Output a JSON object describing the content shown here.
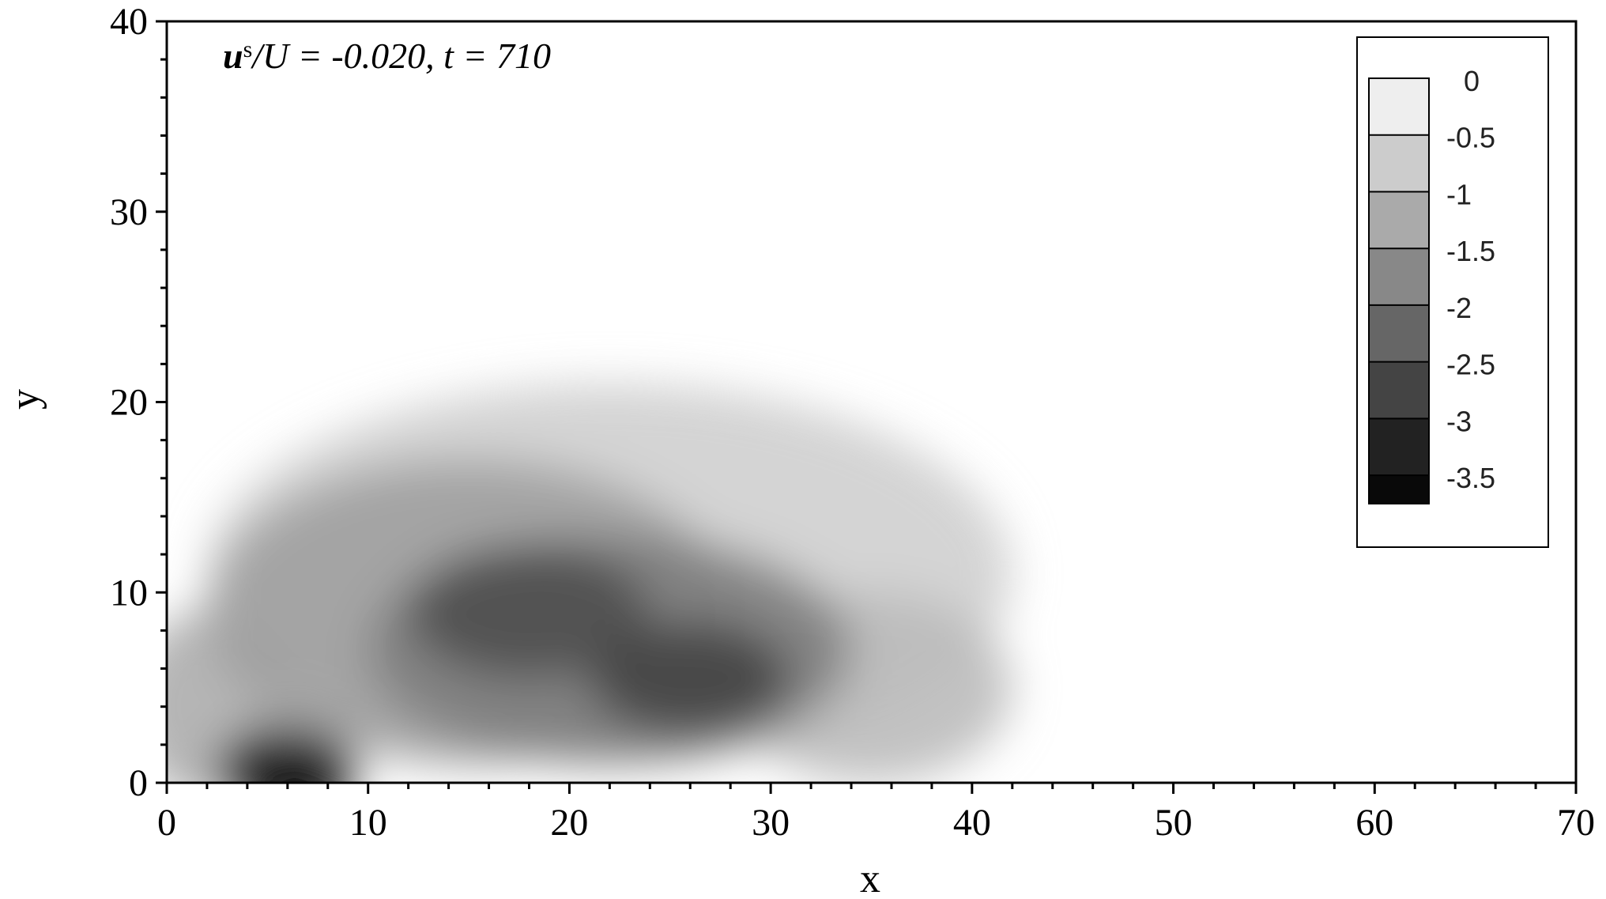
{
  "chart_data": {
    "type": "contour",
    "annotation": {
      "symbol": "u",
      "superscript": "s",
      "rest": "/U  = -0.020,   t = 710"
    },
    "x_label": "x",
    "y_label": "y",
    "xlim": [
      0,
      70
    ],
    "xticks": [
      0,
      10,
      20,
      30,
      40,
      50,
      60,
      70
    ],
    "ylim": [
      0,
      40
    ],
    "yticks": [
      0,
      10,
      20,
      30,
      40
    ],
    "minor_per_major": 5,
    "colormap": [
      "#000000",
      "#ffffff"
    ],
    "levels": [
      0,
      -0.5,
      -1,
      -1.5,
      -2,
      -2.5,
      -3,
      -3.5
    ],
    "clim": [
      -3.75,
      0
    ],
    "field": [
      {
        "x": 22,
        "y": 11,
        "rx": 20,
        "ry": 10,
        "value": -0.7
      },
      {
        "x": 35,
        "y": 5,
        "rx": 7,
        "ry": 5,
        "value": -1.0
      },
      {
        "x": 2,
        "y": 4,
        "rx": 4,
        "ry": 5,
        "value": -1.2
      },
      {
        "x": 15,
        "y": 9,
        "rx": 13,
        "ry": 8,
        "value": -1.4
      },
      {
        "x": 22,
        "y": 7,
        "rx": 12,
        "ry": 6,
        "value": -1.9
      },
      {
        "x": 18,
        "y": 9,
        "rx": 6,
        "ry": 3.5,
        "value": -2.6
      },
      {
        "x": 26,
        "y": 5.5,
        "rx": 5,
        "ry": 3,
        "value": -2.8
      },
      {
        "x": 6,
        "y": 0.5,
        "rx": 3.5,
        "ry": 2.5,
        "value": -3.7
      }
    ]
  }
}
